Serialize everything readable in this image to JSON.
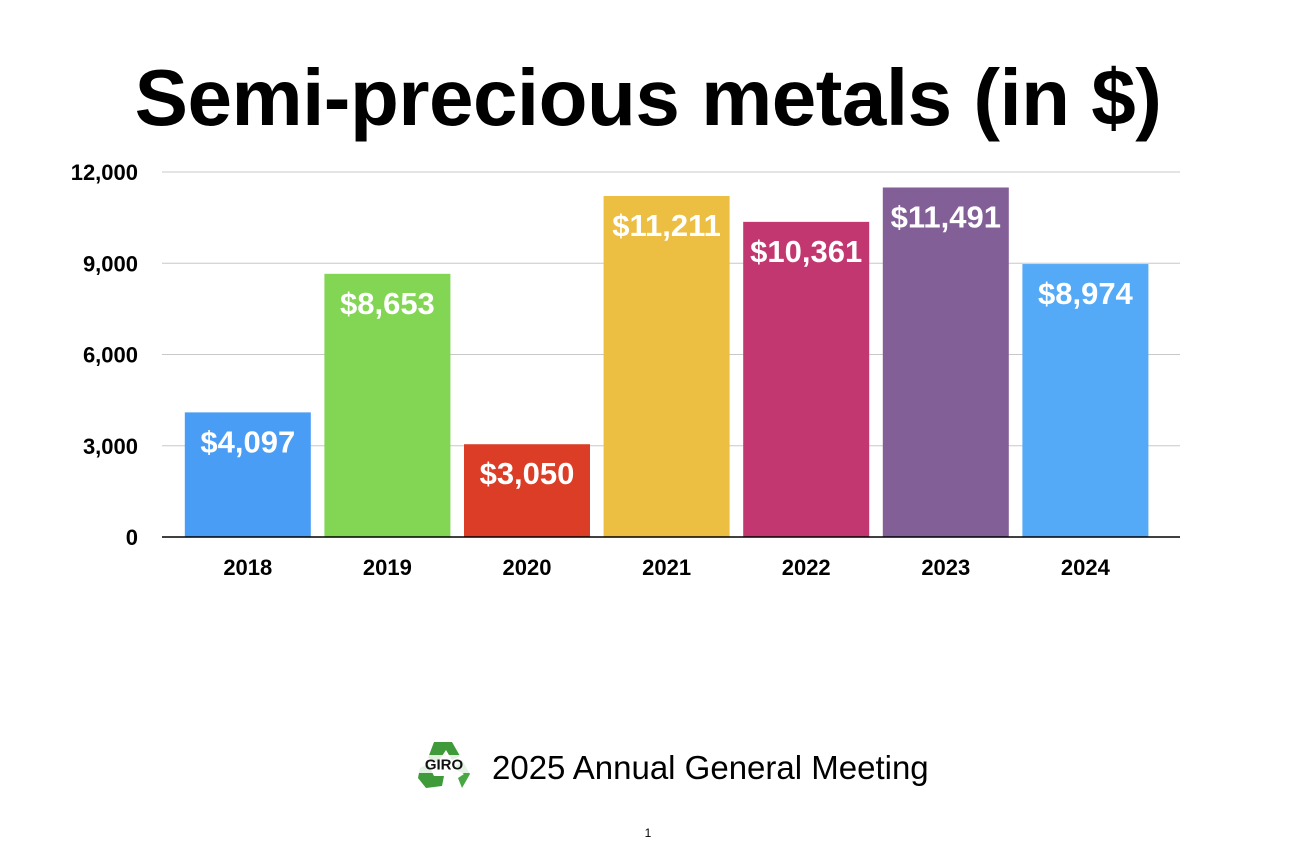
{
  "slide": {
    "title": "Semi-precious metals (in $)",
    "footer_text": "2025 Annual General Meeting",
    "logo_text": "GIRO",
    "logo_icon": "recycle-icon",
    "page_number": "1"
  },
  "chart_data": {
    "type": "bar",
    "title": "Semi-precious metals (in $)",
    "xlabel": "",
    "ylabel": "",
    "categories": [
      "2018",
      "2019",
      "2020",
      "2021",
      "2022",
      "2023",
      "2024"
    ],
    "values": [
      4097,
      8653,
      3050,
      11211,
      10361,
      11491,
      8974
    ],
    "data_labels": [
      "$4,097",
      "$8,653",
      "$3,050",
      "$11,211",
      "$10,361",
      "$11,491",
      "$8,974"
    ],
    "bar_colors": [
      "#4A9DF5",
      "#82D653",
      "#DB3D26",
      "#ECBE42",
      "#C33770",
      "#835F98",
      "#55AAF7"
    ],
    "ylim": [
      0,
      12000
    ],
    "yticks": [
      0,
      3000,
      6000,
      9000,
      12000
    ],
    "ytick_labels": [
      "0",
      "3,000",
      "6,000",
      "9,000",
      "12,000"
    ],
    "grid": true,
    "legend": "none",
    "data_label_color": "#FFFFFF"
  }
}
